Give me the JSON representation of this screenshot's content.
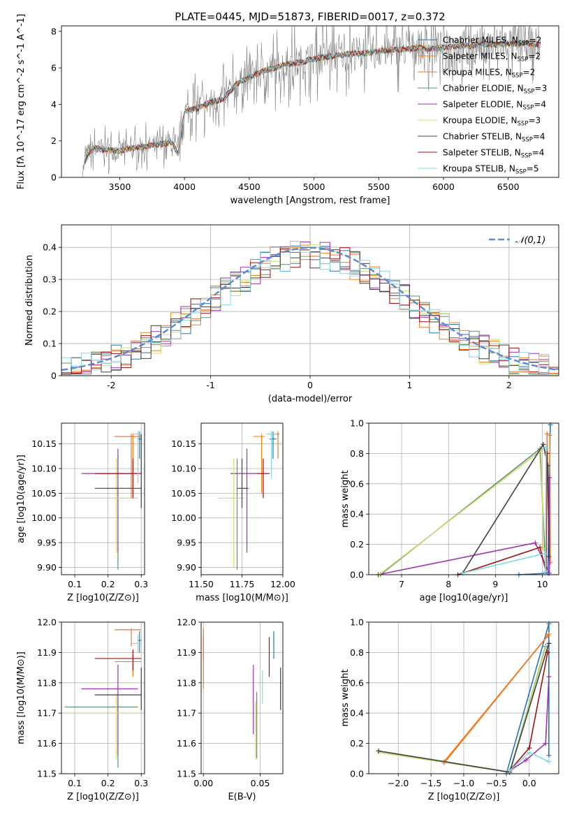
{
  "figure_title": "PLATE=0445, MJD=51873, FIBERID=0017, z=0.372",
  "models": [
    {
      "name": "Chabrier MILES",
      "nssp": "2",
      "color": "#1f77b4",
      "style": "solid"
    },
    {
      "name": "Salpeter MILES",
      "nssp": "2",
      "color": "#ff7f0e",
      "style": "solid"
    },
    {
      "name": "Kroupa MILES",
      "nssp": "2",
      "color": "#e8772e",
      "style": "solid"
    },
    {
      "name": "Chabrier ELODIE",
      "nssp": "3",
      "color": "#5f8f6f",
      "style": "solid"
    },
    {
      "name": "Salpeter ELODIE",
      "nssp": "4",
      "color": "#9b30b0",
      "style": "solid"
    },
    {
      "name": "Kroupa ELODIE",
      "nssp": "3",
      "color": "#c8e06a",
      "style": "solid"
    },
    {
      "name": "Chabrier STELIB",
      "nssp": "4",
      "color": "#404040",
      "style": "solid"
    },
    {
      "name": "Salpeter STELIB",
      "nssp": "4",
      "color": "#a01010",
      "style": "solid"
    },
    {
      "name": "Kroupa STELIB",
      "nssp": "5",
      "color": "#80d8e0",
      "style": "solid"
    }
  ],
  "chart_data": [
    {
      "id": "spectrum",
      "type": "line",
      "xlabel": "wavelength [Angstrom, rest frame]",
      "ylabel": "Flux [fλ 10^-17 erg cm^-2 s^-1 A^-1]",
      "xlim": [
        3050,
        6890
      ],
      "ylim": [
        0,
        8.3
      ],
      "xticks": [
        3500,
        4000,
        4500,
        5000,
        5500,
        6000,
        6500
      ],
      "yticks": [
        0,
        2,
        4,
        6,
        8
      ],
      "grid": false,
      "legend": "right",
      "data_color": "#808080",
      "continuum": {
        "x": [
          3200,
          3250,
          3300,
          3400,
          3500,
          3600,
          3700,
          3800,
          3900,
          3950,
          4000,
          4100,
          4200,
          4300,
          4400,
          4500,
          4600,
          4700,
          4800,
          4900,
          5000,
          5100,
          5200,
          5300,
          5400,
          5500,
          5600,
          5700,
          5800,
          5900,
          6000,
          6100,
          6200,
          6300,
          6400,
          6500,
          6600,
          6700,
          6750
        ],
        "y": [
          0,
          1.3,
          1.6,
          1.5,
          1.45,
          1.6,
          1.7,
          1.8,
          1.9,
          1.3,
          3.6,
          3.8,
          4.1,
          4.3,
          5.1,
          5.5,
          5.8,
          6.0,
          6.2,
          6.3,
          6.5,
          6.6,
          6.7,
          6.8,
          6.8,
          6.9,
          7.0,
          7.0,
          7.1,
          7.05,
          7.1,
          7.2,
          7.2,
          7.3,
          7.3,
          7.3,
          7.35,
          7.3,
          7.2
        ]
      }
    },
    {
      "id": "residuals",
      "type": "histogram",
      "xlabel": "(data-model)/error",
      "ylabel": "Normed distribution",
      "xlim": [
        -2.5,
        2.5
      ],
      "ylim": [
        0,
        0.47
      ],
      "xticks": [
        -2,
        -1,
        0,
        1,
        2
      ],
      "yticks": [
        0.0,
        0.1,
        0.2,
        0.3,
        0.4
      ],
      "grid": true,
      "legend": "top-right",
      "gaussian_label": "𝒩(0,1)",
      "gaussian_color": "#5b8bd6",
      "bin_width": 0.1
    },
    {
      "id": "age_vs_Z",
      "type": "errorbar",
      "xlabel": "Z [log10(Z/Z⊙)]",
      "ylabel": "age  [log10(age/yr)]",
      "xlim": [
        0.06,
        0.31
      ],
      "ylim": [
        9.885,
        10.192
      ],
      "xticks": [
        0.1,
        0.2,
        0.3
      ],
      "xtick_labels": [
        "0.1",
        "0.2",
        "0.3"
      ],
      "yticks": [
        9.9,
        9.95,
        10.0,
        10.05,
        10.1,
        10.15
      ],
      "ytick_labels": [
        "9.90",
        "9.95",
        "10.00",
        "10.05",
        "10.10",
        "10.15"
      ],
      "grid": true,
      "points": [
        {
          "m": 0,
          "x": 0.295,
          "xe": [
            0.29,
            0.3
          ],
          "y": 10.16,
          "ye": [
            10.12,
            10.175
          ]
        },
        {
          "m": 1,
          "x": 0.275,
          "xe": [
            0.22,
            0.3
          ],
          "y": 10.165,
          "ye": [
            10.05,
            10.17
          ]
        },
        {
          "m": 2,
          "x": 0.27,
          "xe": [
            0.22,
            0.3
          ],
          "y": 10.165,
          "ye": [
            10.04,
            10.17
          ]
        },
        {
          "m": 3,
          "x": 0.23,
          "xe": [
            0.07,
            0.29
          ],
          "y": 10.04,
          "ye": [
            9.895,
            10.125
          ]
        },
        {
          "m": 4,
          "x": 0.23,
          "xe": [
            0.12,
            0.29
          ],
          "y": 10.09,
          "ye": [
            9.93,
            10.14
          ]
        },
        {
          "m": 5,
          "x": 0.225,
          "xe": [
            0.07,
            0.29
          ],
          "y": 10.04,
          "ye": [
            9.93,
            10.12
          ]
        },
        {
          "m": 6,
          "x": 0.3,
          "xe": [
            0.16,
            0.3
          ],
          "y": 10.06,
          "ye": [
            10.02,
            10.17
          ]
        },
        {
          "m": 7,
          "x": 0.275,
          "xe": [
            0.16,
            0.3
          ],
          "y": 10.09,
          "ye": [
            10.04,
            10.12
          ]
        },
        {
          "m": 8,
          "x": 0.29,
          "xe": [
            0.27,
            0.3
          ],
          "y": 10.17,
          "ye": [
            10.07,
            10.175
          ]
        }
      ]
    },
    {
      "id": "age_vs_mass",
      "type": "errorbar",
      "xlabel": "mass [log10(M/M⊙)]",
      "ylabel": "",
      "xlim": [
        11.5,
        12.0
      ],
      "ylim": [
        9.885,
        10.192
      ],
      "xticks": [
        11.5,
        11.75,
        12.0
      ],
      "xtick_labels": [
        "11.50",
        "11.75",
        "12.00"
      ],
      "yticks": [
        9.9,
        9.95,
        10.0,
        10.05,
        10.1,
        10.15
      ],
      "ytick_labels": [
        "9.90",
        "9.95",
        "10.00",
        "10.05",
        "10.10",
        "10.15"
      ],
      "grid": true,
      "points": [
        {
          "m": 0,
          "x": 11.94,
          "xe": [
            11.92,
            11.96
          ],
          "y": 10.16,
          "ye": [
            10.12,
            10.175
          ]
        },
        {
          "m": 1,
          "x": 11.87,
          "xe": [
            11.82,
            11.89
          ],
          "y": 10.165,
          "ye": [
            10.05,
            10.17
          ]
        },
        {
          "m": 2,
          "x": 11.97,
          "xe": [
            11.92,
            11.98
          ],
          "y": 10.17,
          "ye": [
            10.12,
            10.175
          ]
        },
        {
          "m": 3,
          "x": 11.72,
          "xe": [
            11.68,
            11.76
          ],
          "y": 10.04,
          "ye": [
            9.895,
            10.12
          ]
        },
        {
          "m": 4,
          "x": 11.78,
          "xe": [
            11.68,
            11.84
          ],
          "y": 10.09,
          "ye": [
            9.93,
            10.14
          ]
        },
        {
          "m": 5,
          "x": 11.7,
          "xe": [
            11.6,
            11.76
          ],
          "y": 10.04,
          "ye": [
            9.9,
            10.12
          ]
        },
        {
          "m": 6,
          "x": 11.75,
          "xe": [
            11.72,
            11.79
          ],
          "y": 10.06,
          "ye": [
            10.02,
            10.12
          ]
        },
        {
          "m": 7,
          "x": 11.88,
          "xe": [
            11.84,
            11.92
          ],
          "y": 10.09,
          "ye": [
            10.04,
            10.12
          ]
        },
        {
          "m": 8,
          "x": 11.93,
          "xe": [
            11.9,
            11.96
          ],
          "y": 10.17,
          "ye": [
            10.08,
            10.175
          ]
        }
      ]
    },
    {
      "id": "weight_vs_age",
      "type": "line",
      "xlabel": "age  [log10(age/yr)]",
      "ylabel": "mass weight",
      "xlim": [
        6.3,
        10.35
      ],
      "ylim": [
        0,
        1.0
      ],
      "xticks": [
        7,
        8,
        9,
        10
      ],
      "yticks": [
        0.0,
        0.2,
        0.4,
        0.6,
        0.8,
        1.0
      ],
      "ytick_labels": [
        "0.0",
        "0.2",
        "0.4",
        "0.6",
        "0.8",
        "1.0"
      ],
      "grid": true,
      "series": [
        {
          "m": 0,
          "x": [
            9.5,
            10.12,
            10.17
          ],
          "y": [
            0.0,
            0.01,
            0.99
          ]
        },
        {
          "m": 1,
          "x": [
            10.17,
            10.16
          ],
          "y": [
            0.08,
            0.92
          ]
        },
        {
          "m": 2,
          "x": [
            10.15,
            10.1
          ],
          "y": [
            0.08,
            0.93
          ]
        },
        {
          "m": 3,
          "x": [
            6.55,
            9.95,
            10.05
          ],
          "y": [
            0.0,
            0.83,
            0.17
          ]
        },
        {
          "m": 4,
          "x": [
            6.5,
            9.85,
            10.15,
            10.15
          ],
          "y": [
            0.0,
            0.21,
            0.01,
            0.64
          ]
        },
        {
          "m": 5,
          "x": [
            6.52,
            9.97,
            10.03
          ],
          "y": [
            0.0,
            0.82,
            0.17
          ]
        },
        {
          "m": 6,
          "x": [
            8.3,
            10.02,
            10.12,
            10.14
          ],
          "y": [
            0.01,
            0.86,
            0.72,
            0.12
          ]
        },
        {
          "m": 7,
          "x": [
            8.2,
            9.95,
            10.08,
            10.1
          ],
          "y": [
            0.0,
            0.18,
            0.02,
            0.8
          ]
        },
        {
          "m": 8,
          "x": [
            8.3,
            10.05,
            10.07,
            10.08
          ],
          "y": [
            0.01,
            0.14,
            0.02,
            0.84
          ]
        }
      ]
    },
    {
      "id": "mass_vs_Z",
      "type": "errorbar",
      "xlabel": "Z [log10(Z/Z⊙)]",
      "ylabel": "mass [log10(M/M⊙)]",
      "xlim": [
        0.06,
        0.31
      ],
      "ylim": [
        11.5,
        12.0
      ],
      "xticks": [
        0.1,
        0.2,
        0.3
      ],
      "xtick_labels": [
        "0.1",
        "0.2",
        "0.3"
      ],
      "yticks": [
        11.5,
        11.6,
        11.7,
        11.8,
        11.9,
        12.0
      ],
      "ytick_labels": [
        "11.5",
        "11.6",
        "11.7",
        "11.8",
        "11.9",
        "12.0"
      ],
      "grid": true,
      "points": [
        {
          "m": 0,
          "x": 0.295,
          "xe": [
            0.29,
            0.3
          ],
          "y": 11.94,
          "ye": [
            11.9,
            11.97
          ]
        },
        {
          "m": 1,
          "x": 0.275,
          "xe": [
            0.22,
            0.3
          ],
          "y": 11.87,
          "ye": [
            11.82,
            11.89
          ]
        },
        {
          "m": 2,
          "x": 0.27,
          "xe": [
            0.22,
            0.3
          ],
          "y": 11.975,
          "ye": [
            11.92,
            11.98
          ]
        },
        {
          "m": 3,
          "x": 0.23,
          "xe": [
            0.07,
            0.29
          ],
          "y": 11.72,
          "ye": [
            11.52,
            11.76
          ]
        },
        {
          "m": 4,
          "x": 0.23,
          "xe": [
            0.12,
            0.29
          ],
          "y": 11.78,
          "ye": [
            11.56,
            11.86
          ]
        },
        {
          "m": 5,
          "x": 0.225,
          "xe": [
            0.07,
            0.29
          ],
          "y": 11.7,
          "ye": [
            11.55,
            11.76
          ]
        },
        {
          "m": 6,
          "x": 0.3,
          "xe": [
            0.16,
            0.3
          ],
          "y": 11.76,
          "ye": [
            11.71,
            11.85
          ]
        },
        {
          "m": 7,
          "x": 0.275,
          "xe": [
            0.16,
            0.3
          ],
          "y": 11.88,
          "ye": [
            11.84,
            11.91
          ]
        },
        {
          "m": 8,
          "x": 0.29,
          "xe": [
            0.27,
            0.3
          ],
          "y": 11.93,
          "ye": [
            11.9,
            11.96
          ]
        }
      ]
    },
    {
      "id": "mass_vs_ebv",
      "type": "errorbar",
      "xlabel": "E(B-V)",
      "ylabel": "",
      "xlim": [
        -0.002,
        0.07
      ],
      "ylim": [
        11.5,
        12.0
      ],
      "xticks": [
        0.0,
        0.05
      ],
      "xtick_labels": [
        "0.00",
        "0.05"
      ],
      "yticks": [
        11.5,
        11.6,
        11.7,
        11.8,
        11.9,
        12.0
      ],
      "ytick_labels": [
        "11.5",
        "11.6",
        "11.7",
        "11.8",
        "11.9",
        "12.0"
      ],
      "grid": true,
      "points": [
        {
          "m": 0,
          "x": 0.062,
          "xe": [
            0.062,
            0.062
          ],
          "y": 11.94,
          "ye": [
            11.88,
            11.97
          ]
        },
        {
          "m": 1,
          "x": 0.0,
          "xe": [
            0.0,
            0.0
          ],
          "y": 11.87,
          "ye": [
            11.78,
            11.96
          ]
        },
        {
          "m": 2,
          "x": 0.0,
          "xe": [
            0.0,
            0.0
          ],
          "y": 11.975,
          "ye": [
            11.88,
            11.98
          ]
        },
        {
          "m": 3,
          "x": 0.047,
          "xe": [
            0.047,
            0.047
          ],
          "y": 11.72,
          "ye": [
            11.55,
            11.77
          ]
        },
        {
          "m": 4,
          "x": 0.044,
          "xe": [
            0.044,
            0.044
          ],
          "y": 11.78,
          "ye": [
            11.63,
            11.86
          ]
        },
        {
          "m": 5,
          "x": 0.046,
          "xe": [
            0.046,
            0.046
          ],
          "y": 11.7,
          "ye": [
            11.55,
            11.74
          ]
        },
        {
          "m": 6,
          "x": 0.068,
          "xe": [
            0.068,
            0.068
          ],
          "y": 11.76,
          "ye": [
            11.71,
            11.85
          ]
        },
        {
          "m": 7,
          "x": 0.058,
          "xe": [
            0.058,
            0.058
          ],
          "y": 11.88,
          "ye": [
            11.82,
            11.95
          ]
        },
        {
          "m": 8,
          "x": 0.052,
          "xe": [
            0.052,
            0.052
          ],
          "y": 11.79,
          "ye": [
            11.73,
            11.84
          ]
        }
      ]
    },
    {
      "id": "weight_vs_Z",
      "type": "line",
      "xlabel": "Z [log10(Z/Z⊙)]",
      "ylabel": "mass weight",
      "xlim": [
        -2.45,
        0.45
      ],
      "ylim": [
        0,
        1.0
      ],
      "xticks": [
        -2.0,
        -1.5,
        -1.0,
        -0.5,
        0.0
      ],
      "xtick_labels": [
        "−2.0",
        "−1.5",
        "−1.0",
        "−0.5",
        "0.0"
      ],
      "yticks": [
        0.0,
        0.2,
        0.4,
        0.6,
        0.8,
        1.0
      ],
      "ytick_labels": [
        "0.0",
        "0.2",
        "0.4",
        "0.6",
        "0.8",
        "1.0"
      ],
      "grid": true,
      "series": [
        {
          "m": 0,
          "x": [
            -0.35,
            0.3,
            0.3
          ],
          "y": [
            0.0,
            0.99,
            0.12
          ]
        },
        {
          "m": 1,
          "x": [
            -1.3,
            0.3
          ],
          "y": [
            0.08,
            0.92
          ]
        },
        {
          "m": 2,
          "x": [
            -1.3,
            0.28
          ],
          "y": [
            0.07,
            0.91
          ]
        },
        {
          "m": 3,
          "x": [
            -2.3,
            -0.3,
            0.25
          ],
          "y": [
            0.15,
            0.01,
            0.84
          ]
        },
        {
          "m": 4,
          "x": [
            -0.3,
            -0.05,
            0.25,
            0.3
          ],
          "y": [
            0.02,
            0.09,
            0.2,
            0.64
          ]
        },
        {
          "m": 5,
          "x": [
            -2.3,
            -0.3,
            0.25
          ],
          "y": [
            0.14,
            0.01,
            0.83
          ]
        },
        {
          "m": 6,
          "x": [
            -2.3,
            -0.3,
            0.3
          ],
          "y": [
            0.15,
            0.01,
            0.86
          ]
        },
        {
          "m": 7,
          "x": [
            -0.3,
            0.0,
            0.28
          ],
          "y": [
            0.02,
            0.17,
            0.8
          ]
        },
        {
          "m": 8,
          "x": [
            -0.3,
            0.0,
            0.3
          ],
          "y": [
            0.02,
            0.14,
            0.08
          ]
        }
      ]
    }
  ]
}
